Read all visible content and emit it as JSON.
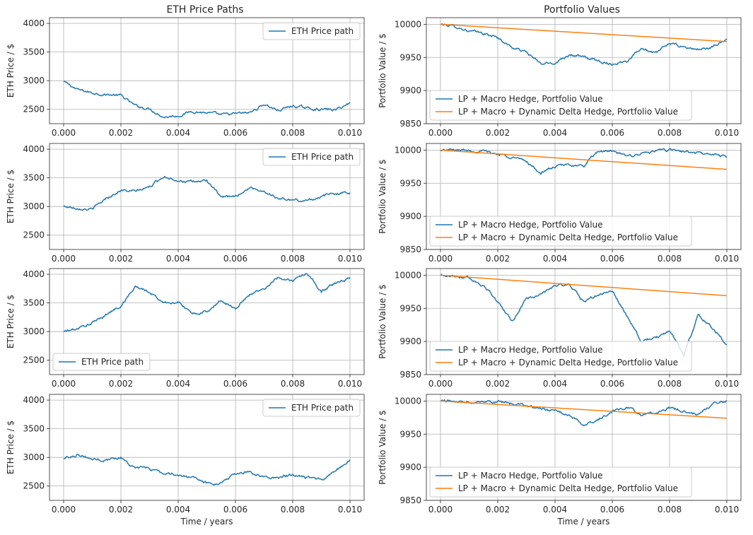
{
  "figure": {
    "left_title": "ETH Price Paths",
    "right_title": "Portfolio Values",
    "colors": {
      "eth": "#1f77b4",
      "lp_macro": "#1f77b4",
      "lp_dynamic": "#ff7f0e"
    }
  },
  "chart_data": [
    {
      "id": "eth-1",
      "type": "line",
      "title": "",
      "xlabel": "",
      "ylabel": "ETH Price / $",
      "xlim": [
        0,
        0.01
      ],
      "ylim": [
        2250,
        4100
      ],
      "xticks": [
        0,
        0.002,
        0.004,
        0.006,
        0.008,
        0.01
      ],
      "xtick_labels": [
        "0.000",
        "0.002",
        "0.004",
        "0.006",
        "0.008",
        "0.010"
      ],
      "yticks": [
        2500,
        3000,
        3500,
        4000
      ],
      "ytick_labels": [
        "2500",
        "3000",
        "3500",
        "4000"
      ],
      "grid": true,
      "legend_position": "upper right",
      "series": [
        {
          "name": "ETH Price path",
          "color": "#1f77b4",
          "x": [
            0,
            0.0005,
            0.001,
            0.0015,
            0.002,
            0.0025,
            0.003,
            0.0035,
            0.004,
            0.0045,
            0.005,
            0.0055,
            0.006,
            0.0065,
            0.007,
            0.0075,
            0.008,
            0.0085,
            0.009,
            0.0095,
            0.01
          ],
          "y": [
            2980,
            2840,
            2790,
            2760,
            2740,
            2560,
            2510,
            2370,
            2390,
            2470,
            2440,
            2400,
            2420,
            2440,
            2590,
            2480,
            2560,
            2520,
            2500,
            2490,
            2610
          ]
        }
      ]
    },
    {
      "id": "pv-1",
      "type": "line",
      "title": "",
      "xlabel": "",
      "ylabel": "Portfolio Value / $",
      "xlim": [
        0,
        0.01
      ],
      "ylim": [
        9850,
        10010
      ],
      "xticks": [
        0,
        0.002,
        0.004,
        0.006,
        0.008,
        0.01
      ],
      "xtick_labels": [
        "0.000",
        "0.002",
        "0.004",
        "0.006",
        "0.008",
        "0.010"
      ],
      "yticks": [
        9850,
        9900,
        9950,
        10000
      ],
      "ytick_labels": [
        "9850",
        "9900",
        "9950",
        "10000"
      ],
      "grid": true,
      "legend_position": "lower left",
      "series": [
        {
          "name": "LP + Macro Hedge, Portfolio Value",
          "color": "#1f77b4",
          "x": [
            0,
            0.0005,
            0.001,
            0.0015,
            0.002,
            0.0025,
            0.003,
            0.0035,
            0.004,
            0.0045,
            0.005,
            0.0055,
            0.006,
            0.0065,
            0.007,
            0.0075,
            0.008,
            0.0085,
            0.009,
            0.0095,
            0.01
          ],
          "y": [
            10000,
            9997,
            9990,
            9986,
            9980,
            9965,
            9958,
            9940,
            9942,
            9955,
            9950,
            9945,
            9940,
            9945,
            9965,
            9955,
            9972,
            9965,
            9962,
            9965,
            9978
          ]
        },
        {
          "name": "LP + Macro + Dynamic Delta Hedge, Portfolio Value",
          "color": "#ff7f0e",
          "x": [
            0,
            0.01
          ],
          "y": [
            10000,
            9974
          ]
        }
      ]
    },
    {
      "id": "eth-2",
      "type": "line",
      "title": "",
      "xlabel": "",
      "ylabel": "ETH Price / $",
      "xlim": [
        0,
        0.01
      ],
      "ylim": [
        2250,
        4100
      ],
      "xticks": [
        0,
        0.002,
        0.004,
        0.006,
        0.008,
        0.01
      ],
      "xtick_labels": [
        "0.000",
        "0.002",
        "0.004",
        "0.006",
        "0.008",
        "0.010"
      ],
      "yticks": [
        2500,
        3000,
        3500,
        4000
      ],
      "ytick_labels": [
        "2500",
        "3000",
        "3500",
        "4000"
      ],
      "grid": true,
      "legend_position": "upper right",
      "series": [
        {
          "name": "ETH Price path",
          "color": "#1f77b4",
          "x": [
            0,
            0.0005,
            0.001,
            0.0015,
            0.002,
            0.0025,
            0.003,
            0.0035,
            0.004,
            0.0045,
            0.005,
            0.0055,
            0.006,
            0.0065,
            0.007,
            0.0075,
            0.008,
            0.0085,
            0.009,
            0.0095,
            0.01
          ],
          "y": [
            3000,
            2980,
            2950,
            3150,
            3280,
            3260,
            3340,
            3530,
            3460,
            3420,
            3460,
            3150,
            3180,
            3330,
            3270,
            3140,
            3110,
            3100,
            3180,
            3230,
            3240
          ]
        }
      ]
    },
    {
      "id": "pv-2",
      "type": "line",
      "title": "",
      "xlabel": "",
      "ylabel": "Portfolio Value / $",
      "xlim": [
        0,
        0.01
      ],
      "ylim": [
        9850,
        10010
      ],
      "xticks": [
        0,
        0.002,
        0.004,
        0.006,
        0.008,
        0.01
      ],
      "xtick_labels": [
        "0.000",
        "0.002",
        "0.004",
        "0.006",
        "0.008",
        "0.010"
      ],
      "yticks": [
        9850,
        9900,
        9950,
        10000
      ],
      "ytick_labels": [
        "9850",
        "9900",
        "9950",
        "10000"
      ],
      "grid": true,
      "legend_position": "lower left",
      "series": [
        {
          "name": "LP + Macro Hedge, Portfolio Value",
          "color": "#1f77b4",
          "x": [
            0,
            0.0005,
            0.001,
            0.0015,
            0.002,
            0.0025,
            0.003,
            0.0035,
            0.004,
            0.0045,
            0.005,
            0.0055,
            0.006,
            0.0065,
            0.007,
            0.0075,
            0.008,
            0.0085,
            0.009,
            0.0095,
            0.01
          ],
          "y": [
            10000,
            10000,
            10000,
            9998,
            9994,
            9990,
            9983,
            9965,
            9975,
            9978,
            9975,
            9998,
            9998,
            9990,
            9995,
            9998,
            10000,
            9998,
            9995,
            9993,
            9990
          ]
        },
        {
          "name": "LP + Macro + Dynamic Delta Hedge, Portfolio Value",
          "color": "#ff7f0e",
          "x": [
            0,
            0.01
          ],
          "y": [
            10000,
            9971
          ]
        }
      ]
    },
    {
      "id": "eth-3",
      "type": "line",
      "title": "",
      "xlabel": "",
      "ylabel": "ETH Price / $",
      "xlim": [
        0,
        0.01
      ],
      "ylim": [
        2250,
        4100
      ],
      "xticks": [
        0,
        0.002,
        0.004,
        0.006,
        0.008,
        0.01
      ],
      "xtick_labels": [
        "0.000",
        "0.002",
        "0.004",
        "0.006",
        "0.008",
        "0.010"
      ],
      "yticks": [
        2500,
        3000,
        3500,
        4000
      ],
      "ytick_labels": [
        "2500",
        "3000",
        "3500",
        "4000"
      ],
      "grid": true,
      "legend_position": "lower left",
      "series": [
        {
          "name": "ETH Price path",
          "color": "#1f77b4",
          "x": [
            0,
            0.0005,
            0.001,
            0.0015,
            0.002,
            0.0025,
            0.003,
            0.0035,
            0.004,
            0.0045,
            0.005,
            0.0055,
            0.006,
            0.0065,
            0.007,
            0.0075,
            0.008,
            0.0085,
            0.009,
            0.0095,
            0.01
          ],
          "y": [
            3000,
            3050,
            3150,
            3300,
            3450,
            3790,
            3680,
            3500,
            3520,
            3300,
            3350,
            3550,
            3400,
            3650,
            3750,
            3950,
            3900,
            4020,
            3700,
            3850,
            3920
          ]
        }
      ]
    },
    {
      "id": "pv-3",
      "type": "line",
      "title": "",
      "xlabel": "",
      "ylabel": "Portfolio Value / $",
      "xlim": [
        0,
        0.01
      ],
      "ylim": [
        9850,
        10010
      ],
      "xticks": [
        0,
        0.002,
        0.004,
        0.006,
        0.008,
        0.01
      ],
      "xtick_labels": [
        "0.000",
        "0.002",
        "0.004",
        "0.006",
        "0.008",
        "0.010"
      ],
      "yticks": [
        9850,
        9900,
        9950,
        10000
      ],
      "ytick_labels": [
        "9850",
        "9900",
        "9950",
        "10000"
      ],
      "grid": true,
      "legend_position": "lower left",
      "series": [
        {
          "name": "LP + Macro Hedge, Portfolio Value",
          "color": "#1f77b4",
          "x": [
            0,
            0.0005,
            0.001,
            0.0015,
            0.002,
            0.0025,
            0.003,
            0.0035,
            0.004,
            0.0045,
            0.005,
            0.0055,
            0.006,
            0.0065,
            0.007,
            0.0075,
            0.008,
            0.0085,
            0.009,
            0.0095,
            0.01
          ],
          "y": [
            10000,
            9999,
            9995,
            9985,
            9960,
            9930,
            9965,
            9970,
            9985,
            9985,
            9960,
            9970,
            9975,
            9940,
            9900,
            9905,
            9915,
            9880,
            9940,
            9920,
            9895
          ]
        },
        {
          "name": "LP + Macro + Dynamic Delta Hedge, Portfolio Value",
          "color": "#ff7f0e",
          "x": [
            0,
            0.01
          ],
          "y": [
            10000,
            9969
          ]
        }
      ]
    },
    {
      "id": "eth-4",
      "type": "line",
      "title": "",
      "xlabel": "Time / years",
      "ylabel": "ETH Price / $",
      "xlim": [
        0,
        0.01
      ],
      "ylim": [
        2250,
        4100
      ],
      "xticks": [
        0,
        0.002,
        0.004,
        0.006,
        0.008,
        0.01
      ],
      "xtick_labels": [
        "0.000",
        "0.002",
        "0.004",
        "0.006",
        "0.008",
        "0.010"
      ],
      "yticks": [
        2500,
        3000,
        3500,
        4000
      ],
      "ytick_labels": [
        "2500",
        "3000",
        "3500",
        "4000"
      ],
      "grid": true,
      "legend_position": "upper right",
      "series": [
        {
          "name": "ETH Price path",
          "color": "#1f77b4",
          "x": [
            0,
            0.0005,
            0.001,
            0.0015,
            0.002,
            0.0025,
            0.003,
            0.0035,
            0.004,
            0.0045,
            0.005,
            0.0055,
            0.006,
            0.0065,
            0.007,
            0.0075,
            0.008,
            0.0085,
            0.009,
            0.0095,
            0.01
          ],
          "y": [
            2980,
            3060,
            2970,
            2960,
            3000,
            2820,
            2810,
            2720,
            2700,
            2640,
            2550,
            2560,
            2700,
            2760,
            2650,
            2650,
            2700,
            2640,
            2600,
            2760,
            2960
          ]
        }
      ]
    },
    {
      "id": "pv-4",
      "type": "line",
      "title": "",
      "xlabel": "Time / years",
      "ylabel": "Portfolio Value / $",
      "xlim": [
        0,
        0.01
      ],
      "ylim": [
        9850,
        10010
      ],
      "xticks": [
        0,
        0.002,
        0.004,
        0.006,
        0.008,
        0.01
      ],
      "xtick_labels": [
        "0.000",
        "0.002",
        "0.004",
        "0.006",
        "0.008",
        "0.010"
      ],
      "yticks": [
        9850,
        9900,
        9950,
        10000
      ],
      "ytick_labels": [
        "9850",
        "9900",
        "9950",
        "10000"
      ],
      "grid": true,
      "legend_position": "lower left",
      "series": [
        {
          "name": "LP + Macro Hedge, Portfolio Value",
          "color": "#1f77b4",
          "x": [
            0,
            0.0005,
            0.001,
            0.0015,
            0.002,
            0.0025,
            0.003,
            0.0035,
            0.004,
            0.0045,
            0.005,
            0.0055,
            0.006,
            0.0065,
            0.007,
            0.0075,
            0.008,
            0.0085,
            0.009,
            0.0095,
            0.01
          ],
          "y": [
            10000,
            10000,
            10000,
            10000,
            10000,
            9995,
            9993,
            9988,
            9985,
            9978,
            9965,
            9972,
            9985,
            9990,
            9980,
            9983,
            9990,
            9985,
            9980,
            9995,
            10000
          ]
        },
        {
          "name": "LP + Macro + Dynamic Delta Hedge, Portfolio Value",
          "color": "#ff7f0e",
          "x": [
            0,
            0.01
          ],
          "y": [
            10000,
            9974
          ]
        }
      ]
    }
  ]
}
